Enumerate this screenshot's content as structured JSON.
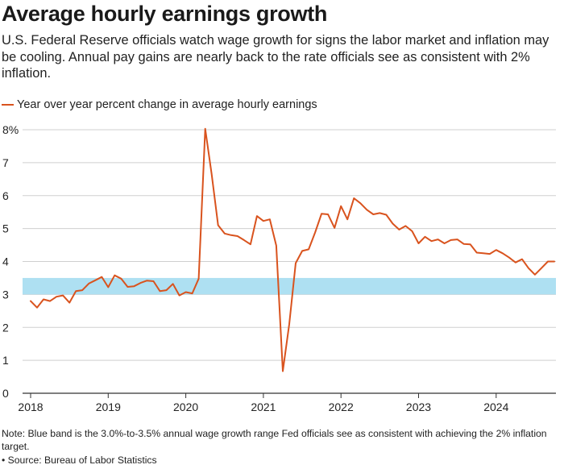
{
  "title": "Average hourly earnings growth",
  "subtitle": "U.S. Federal Reserve officials watch wage growth for signs the labor market and inflation may be cooling. Annual pay gains are nearly back to the rate officials see as consistent with 2% inflation.",
  "legend_label": "Year over year percent change in average hourly earnings",
  "note": "Note: Blue band is the 3.0%-to-3.5% annual wage growth range Fed officials see as consistent with achieving the 2% inflation target.",
  "source": "• Source: Bureau of Labor Statistics",
  "colors": {
    "line": "#d9531e",
    "band": "#aee0f2",
    "grid": "#cfcfcf",
    "axis": "#333333"
  },
  "chart_data": {
    "type": "line",
    "series": [
      {
        "name": "Year over year percent change in average hourly earnings",
        "x": [
          "2018-01",
          "2018-02",
          "2018-03",
          "2018-04",
          "2018-05",
          "2018-06",
          "2018-07",
          "2018-08",
          "2018-09",
          "2018-10",
          "2018-11",
          "2018-12",
          "2019-01",
          "2019-02",
          "2019-03",
          "2019-04",
          "2019-05",
          "2019-06",
          "2019-07",
          "2019-08",
          "2019-09",
          "2019-10",
          "2019-11",
          "2019-12",
          "2020-01",
          "2020-02",
          "2020-03",
          "2020-04",
          "2020-05",
          "2020-06",
          "2020-07",
          "2020-08",
          "2020-09",
          "2020-10",
          "2020-11",
          "2020-12",
          "2021-01",
          "2021-02",
          "2021-03",
          "2021-04",
          "2021-05",
          "2021-06",
          "2021-07",
          "2021-08",
          "2021-09",
          "2021-10",
          "2021-11",
          "2021-12",
          "2022-01",
          "2022-02",
          "2022-03",
          "2022-04",
          "2022-05",
          "2022-06",
          "2022-07",
          "2022-08",
          "2022-09",
          "2022-10",
          "2022-11",
          "2022-12",
          "2023-01",
          "2023-02",
          "2023-03",
          "2023-04",
          "2023-05",
          "2023-06",
          "2023-07",
          "2023-08",
          "2023-09",
          "2023-10",
          "2023-11",
          "2023-12",
          "2024-01",
          "2024-02",
          "2024-03",
          "2024-04",
          "2024-05",
          "2024-06",
          "2024-07",
          "2024-08",
          "2024-09",
          "2024-10"
        ],
        "values": [
          2.8,
          2.6,
          2.85,
          2.8,
          2.93,
          2.97,
          2.75,
          3.1,
          3.13,
          3.33,
          3.43,
          3.53,
          3.22,
          3.58,
          3.48,
          3.23,
          3.25,
          3.35,
          3.42,
          3.4,
          3.1,
          3.13,
          3.32,
          2.97,
          3.07,
          3.03,
          3.48,
          8.03,
          6.65,
          5.1,
          4.85,
          4.8,
          4.77,
          4.65,
          4.52,
          5.38,
          5.23,
          5.28,
          4.48,
          0.67,
          2.1,
          3.95,
          4.32,
          4.37,
          4.88,
          5.45,
          5.43,
          5.02,
          5.68,
          5.28,
          5.92,
          5.77,
          5.57,
          5.43,
          5.47,
          5.42,
          5.15,
          4.97,
          5.08,
          4.92,
          4.55,
          4.75,
          4.62,
          4.67,
          4.55,
          4.65,
          4.67,
          4.53,
          4.52,
          4.27,
          4.25,
          4.23,
          4.35,
          4.25,
          4.12,
          3.97,
          4.07,
          3.8,
          3.6,
          3.8,
          4.0,
          4.0
        ]
      }
    ],
    "band": {
      "low": 3.0,
      "high": 3.5
    },
    "ylim": [
      0,
      8
    ],
    "yticks": [
      0,
      1,
      2,
      3,
      4,
      5,
      6,
      7,
      8
    ],
    "ytick_labels": [
      "0",
      "1",
      "2",
      "3",
      "4",
      "5",
      "6",
      "7",
      "8%"
    ],
    "xticks": [
      "2018",
      "2019",
      "2020",
      "2021",
      "2022",
      "2023",
      "2024"
    ],
    "xlabel": "",
    "ylabel": "",
    "grid": true
  }
}
